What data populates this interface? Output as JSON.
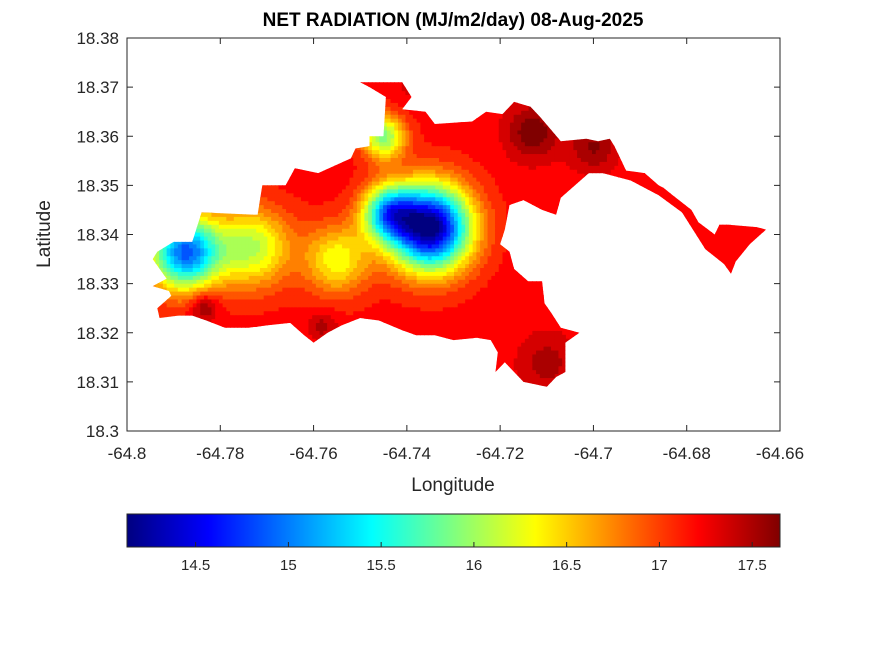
{
  "chart_data": {
    "type": "heatmap",
    "title": "NET RADIATION (MJ/m2/day) 08-Aug-2025",
    "xlabel": "Longitude",
    "ylabel": "Latitude",
    "xlim": [
      -64.8,
      -64.66
    ],
    "ylim": [
      18.3,
      18.38
    ],
    "xticks": [
      -64.8,
      -64.78,
      -64.76,
      -64.74,
      -64.72,
      -64.7,
      -64.68,
      -64.66
    ],
    "xtick_labels": [
      "-64.8",
      "-64.78",
      "-64.76",
      "-64.74",
      "-64.72",
      "-64.7",
      "-64.68",
      "-64.66"
    ],
    "yticks": [
      18.3,
      18.31,
      18.32,
      18.33,
      18.34,
      18.35,
      18.36,
      18.37,
      18.38
    ],
    "ytick_labels": [
      "18.3",
      "18.31",
      "18.32",
      "18.33",
      "18.34",
      "18.35",
      "18.36",
      "18.37",
      "18.38"
    ],
    "colormap": "jet",
    "clim": [
      14.13,
      17.65
    ],
    "colorbar_ticks": [
      14.5,
      15,
      15.5,
      16,
      16.5,
      17,
      17.5
    ],
    "colorbar_tick_labels": [
      "14.5",
      "15",
      "15.5",
      "16",
      "16.5",
      "17",
      "17.5"
    ],
    "colorbar_position": "bottom",
    "grid": false,
    "region_outline": [
      [
        -64.7935,
        18.3365
      ],
      [
        -64.79,
        18.3385
      ],
      [
        -64.786,
        18.3385
      ],
      [
        -64.784,
        18.3445
      ],
      [
        -64.772,
        18.344
      ],
      [
        -64.771,
        18.35
      ],
      [
        -64.766,
        18.35
      ],
      [
        -64.764,
        18.3535
      ],
      [
        -64.759,
        18.3525
      ],
      [
        -64.752,
        18.3555
      ],
      [
        -64.751,
        18.3575
      ],
      [
        -64.748,
        18.358
      ],
      [
        -64.748,
        18.36
      ],
      [
        -64.746,
        18.36
      ],
      [
        -64.745,
        18.36
      ],
      [
        -64.7445,
        18.368
      ],
      [
        -64.748,
        18.37
      ],
      [
        -64.75,
        18.371
      ],
      [
        -64.741,
        18.371
      ],
      [
        -64.739,
        18.368
      ],
      [
        -64.741,
        18.3655
      ],
      [
        -64.736,
        18.365
      ],
      [
        -64.734,
        18.3625
      ],
      [
        -64.726,
        18.363
      ],
      [
        -64.723,
        18.365
      ],
      [
        -64.7195,
        18.3645
      ],
      [
        -64.717,
        18.367
      ],
      [
        -64.7135,
        18.366
      ],
      [
        -64.7115,
        18.364
      ],
      [
        -64.707,
        18.359
      ],
      [
        -64.7015,
        18.3595
      ],
      [
        -64.699,
        18.359
      ],
      [
        -64.6965,
        18.3595
      ],
      [
        -64.6955,
        18.358
      ],
      [
        -64.6945,
        18.356
      ],
      [
        -64.693,
        18.353
      ],
      [
        -64.689,
        18.3525
      ],
      [
        -64.686,
        18.35
      ],
      [
        -64.685,
        18.3495
      ],
      [
        -64.683,
        18.348
      ],
      [
        -64.679,
        18.345
      ],
      [
        -64.6775,
        18.3425
      ],
      [
        -64.674,
        18.34
      ],
      [
        -64.673,
        18.342
      ],
      [
        -64.671,
        18.342
      ],
      [
        -64.665,
        18.3415
      ],
      [
        -64.663,
        18.341
      ],
      [
        -64.6665,
        18.338
      ],
      [
        -64.6695,
        18.3345
      ],
      [
        -64.6705,
        18.332
      ],
      [
        -64.672,
        18.334
      ],
      [
        -64.676,
        18.337
      ],
      [
        -64.681,
        18.3445
      ],
      [
        -64.686,
        18.348
      ],
      [
        -64.692,
        18.351
      ],
      [
        -64.698,
        18.3525
      ],
      [
        -64.701,
        18.3525
      ],
      [
        -64.707,
        18.3475
      ],
      [
        -64.708,
        18.344
      ],
      [
        -64.711,
        18.345
      ],
      [
        -64.715,
        18.347
      ],
      [
        -64.718,
        18.346
      ],
      [
        -64.719,
        18.341
      ],
      [
        -64.72,
        18.338
      ],
      [
        -64.718,
        18.3365
      ],
      [
        -64.717,
        18.333
      ],
      [
        -64.714,
        18.3305
      ],
      [
        -64.711,
        18.3305
      ],
      [
        -64.7105,
        18.326
      ],
      [
        -64.709,
        18.324
      ],
      [
        -64.707,
        18.321
      ],
      [
        -64.703,
        18.32
      ],
      [
        -64.706,
        18.318
      ],
      [
        -64.706,
        18.312
      ],
      [
        -64.708,
        18.311
      ],
      [
        -64.71,
        18.309
      ],
      [
        -64.715,
        18.31
      ],
      [
        -64.717,
        18.312
      ],
      [
        -64.719,
        18.314
      ],
      [
        -64.721,
        18.312
      ],
      [
        -64.7205,
        18.316
      ],
      [
        -64.722,
        18.3185
      ],
      [
        -64.725,
        18.319
      ],
      [
        -64.73,
        18.3185
      ],
      [
        -64.734,
        18.3195
      ],
      [
        -64.738,
        18.3195
      ],
      [
        -64.741,
        18.3205
      ],
      [
        -64.746,
        18.3225
      ],
      [
        -64.75,
        18.323
      ],
      [
        -64.754,
        18.3215
      ],
      [
        -64.757,
        18.32
      ],
      [
        -64.76,
        18.318
      ],
      [
        -64.762,
        18.3195
      ],
      [
        -64.765,
        18.322
      ],
      [
        -64.77,
        18.3215
      ],
      [
        -64.774,
        18.321
      ],
      [
        -64.779,
        18.321
      ],
      [
        -64.783,
        18.3225
      ],
      [
        -64.786,
        18.3235
      ],
      [
        -64.789,
        18.3235
      ],
      [
        -64.793,
        18.323
      ],
      [
        -64.7935,
        18.325
      ],
      [
        -64.7905,
        18.3275
      ],
      [
        -64.791,
        18.3285
      ],
      [
        -64.7945,
        18.3295
      ],
      [
        -64.7915,
        18.331
      ],
      [
        -64.793,
        18.333
      ],
      [
        -64.7945,
        18.335
      ]
    ],
    "value_field": {
      "base": 17.2,
      "blobs": [
        {
          "lon": -64.735,
          "lat": 18.3415,
          "amp": -3.1,
          "radius": 0.0085
        },
        {
          "lon": -64.744,
          "lat": 18.3445,
          "amp": -1.7,
          "radius": 0.0055
        },
        {
          "lon": -64.7875,
          "lat": 18.3365,
          "amp": -2.3,
          "radius": 0.0075
        },
        {
          "lon": -64.773,
          "lat": 18.3375,
          "amp": -1.1,
          "radius": 0.008
        },
        {
          "lon": -64.745,
          "lat": 18.36,
          "amp": -1.3,
          "radius": 0.0045
        },
        {
          "lon": -64.755,
          "lat": 18.335,
          "amp": -0.9,
          "radius": 0.007
        },
        {
          "lon": -64.7835,
          "lat": 18.3255,
          "amp": 0.5,
          "radius": 0.003
        },
        {
          "lon": -64.713,
          "lat": 18.361,
          "amp": 0.5,
          "radius": 0.0055
        },
        {
          "lon": -64.7,
          "lat": 18.358,
          "amp": 0.4,
          "radius": 0.005
        },
        {
          "lon": -64.74,
          "lat": 18.37,
          "amp": 0.1,
          "radius": 0.004
        },
        {
          "lon": -64.71,
          "lat": 18.314,
          "amp": 0.3,
          "radius": 0.006
        },
        {
          "lon": -64.758,
          "lat": 18.3215,
          "amp": 0.3,
          "radius": 0.003
        }
      ],
      "min": 14.13,
      "max": 17.65
    }
  }
}
